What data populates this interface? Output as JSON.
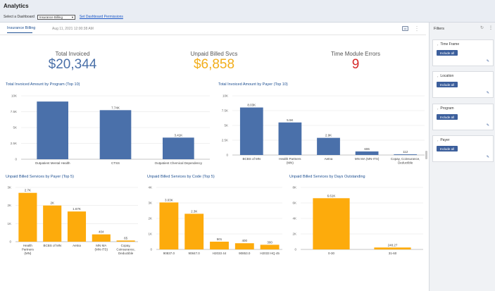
{
  "app": {
    "title": "Analytics",
    "select_label": "Select a Dashboard",
    "selected_dashboard": "Insurance Billing",
    "permissions_link": "Set Dashboard Permissions"
  },
  "dashboard": {
    "name": "Insurance Billing",
    "timestamp": "Aug 11, 2021 12:00:38 AM"
  },
  "kpis": [
    {
      "label": "Total Invoiced",
      "value": "$20,344",
      "color": "#4a70a8"
    },
    {
      "label": "Unpaid Billed Svcs",
      "value": "$6,858",
      "color": "#f2ae1c"
    },
    {
      "label": "Time Module Errors",
      "value": "9",
      "color": "#d62b2b"
    }
  ],
  "filters": {
    "title": "Filters",
    "groups": [
      {
        "label": "Time Frame",
        "button": "Include all"
      },
      {
        "label": "Location",
        "button": "Include all"
      },
      {
        "label": "Program",
        "button": "Include all"
      },
      {
        "label": "Payer",
        "button": "Include all"
      }
    ]
  },
  "chart_data": [
    {
      "type": "bar",
      "title": "Total Invoiced Amount by Program (Top 10)",
      "color": "#4a70aa",
      "ylim": [
        0,
        10000
      ],
      "yticks": [
        "0",
        "2.5K",
        "5K",
        "7.5K",
        "10K"
      ],
      "categories": [
        [
          "Outpatient Mental Health"
        ],
        [
          "CTSS"
        ],
        [
          "Outpatient Chemical Dependency"
        ]
      ],
      "values": [
        9100,
        7740,
        3410
      ],
      "labels": [
        "",
        "7.74K",
        "3.41K"
      ]
    },
    {
      "type": "bar",
      "title": "Total Invoiced Amount by Payer (Top 10)",
      "color": "#4a70aa",
      "ylim": [
        0,
        10000
      ],
      "yticks": [
        "0",
        "2.5K",
        "5K",
        "7.5K",
        "10K"
      ],
      "categories": [
        [
          "BCBS of MN"
        ],
        [
          "Health Partners",
          "(MN)"
        ],
        [
          "Aetna"
        ],
        [
          "MN MA (MN-ITS)"
        ],
        [
          "Copay, Coinsurance,",
          "Deductible"
        ]
      ],
      "values": [
        8030,
        5500,
        2900,
        606,
        112
      ],
      "labels": [
        "8.03K",
        "5.5K",
        "2.9K",
        "606",
        "112"
      ]
    },
    {
      "type": "bar",
      "title": "Unpaid Billed Services by Payer (Top 5)",
      "color": "#fdab0c",
      "ylim": [
        0,
        3000
      ],
      "yticks": [
        "0",
        "1K",
        "2K",
        "3K"
      ],
      "categories": [
        [
          "Health",
          "Partners",
          "(MN)"
        ],
        [
          "BCBS of MN"
        ],
        [
          "Aetna"
        ],
        [
          "MN MA",
          "(MN-ITS)"
        ],
        [
          "Copay,",
          "Coinsurance,",
          "Deductible"
        ]
      ],
      "values": [
        2700,
        2000,
        1670,
        404,
        65
      ],
      "labels": [
        "2.7K",
        "2K",
        "1.67K",
        "404",
        "65"
      ]
    },
    {
      "type": "bar",
      "title": "Unpaid Billed Services by Code (Top 5)",
      "color": "#fdab0c",
      "ylim": [
        0,
        4000
      ],
      "yticks": [
        "0",
        "1K",
        "2K",
        "3K",
        "4K"
      ],
      "categories": [
        [
          "90837.0"
        ],
        [
          "90847.0"
        ],
        [
          "H2033 44"
        ],
        [
          "90853.0"
        ],
        [
          "H2033 HQ 45"
        ]
      ],
      "values": [
        3030,
        2300,
        501,
        400,
        300
      ],
      "labels": [
        "3.03K",
        "2.3K",
        "501",
        "400",
        "300"
      ]
    },
    {
      "type": "bar",
      "title": "Unpaid Billed Services by Days Outstanding",
      "color": "#fdab0c",
      "ylim": [
        0,
        8000
      ],
      "yticks": [
        "0",
        "2K",
        "4K",
        "6K",
        "8K"
      ],
      "categories": [
        [
          "0-30"
        ],
        [
          "31-60"
        ]
      ],
      "values": [
        6610,
        248.27
      ],
      "labels": [
        "6.61K",
        "248.27"
      ]
    }
  ]
}
